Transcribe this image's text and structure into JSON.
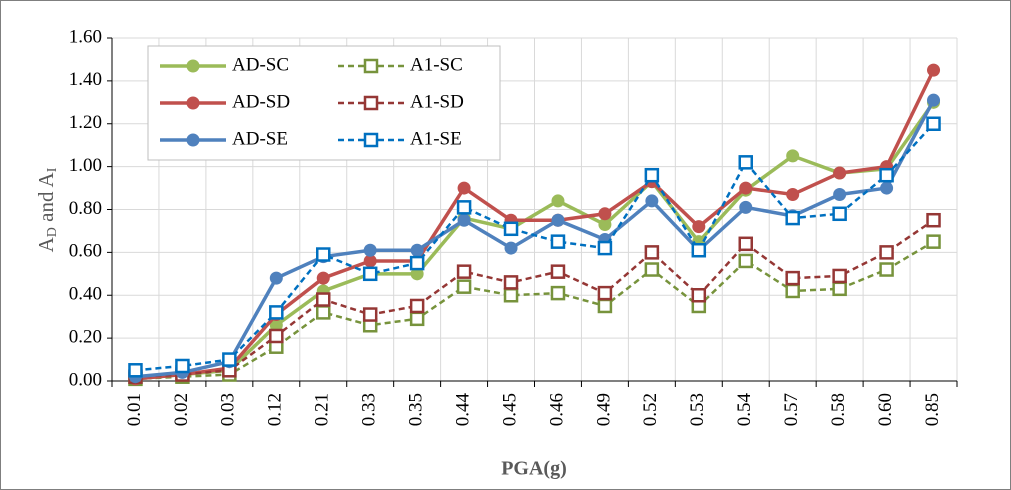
{
  "chart_data": {
    "type": "line",
    "xlabel": "PGA(g)",
    "ylabel": [
      "A",
      "D",
      " and A",
      "I"
    ],
    "categories": [
      "0.01",
      "0.02",
      "0.03",
      "0.12",
      "0.21",
      "0.33",
      "0.35",
      "0.44",
      "0.45",
      "0.46",
      "0.49",
      "0.52",
      "0.53",
      "0.54",
      "0.57",
      "0.58",
      "0.60",
      "0.85"
    ],
    "ylim": [
      0,
      1.6
    ],
    "yticks": [
      {
        "value": 0,
        "label": "0.00"
      },
      {
        "value": 0.2,
        "label": "0.20"
      },
      {
        "value": 0.4,
        "label": "0.40"
      },
      {
        "value": 0.6,
        "label": "0.60"
      },
      {
        "value": 0.8,
        "label": "0.80"
      },
      {
        "value": 1,
        "label": "1.00"
      },
      {
        "value": 1.2,
        "label": "1.20"
      },
      {
        "value": 1.4,
        "label": "1.40"
      },
      {
        "value": 1.6,
        "label": "1.60"
      }
    ],
    "grid": true,
    "legend": "upper left",
    "series": [
      {
        "name": "AD-SC",
        "color": "#9bbb59",
        "marker": "circle",
        "dashed": false,
        "values": [
          0.01,
          0.03,
          0.05,
          0.26,
          0.42,
          0.5,
          0.5,
          0.76,
          0.71,
          0.84,
          0.73,
          0.93,
          0.65,
          0.89,
          1.05,
          0.97,
          0.99,
          1.3
        ]
      },
      {
        "name": "A1-SC",
        "color": "#77933c",
        "marker": "square",
        "dashed": true,
        "values": [
          0.01,
          0.02,
          0.03,
          0.16,
          0.32,
          0.26,
          0.29,
          0.44,
          0.4,
          0.41,
          0.35,
          0.52,
          0.35,
          0.56,
          0.42,
          0.43,
          0.52,
          0.65
        ]
      },
      {
        "name": "AD-SD",
        "color": "#c0504d",
        "marker": "circle",
        "dashed": false,
        "values": [
          0.01,
          0.03,
          0.06,
          0.31,
          0.48,
          0.56,
          0.56,
          0.9,
          0.75,
          0.75,
          0.78,
          0.93,
          0.72,
          0.9,
          0.87,
          0.97,
          1.0,
          1.45
        ]
      },
      {
        "name": "A1-SD",
        "color": "#953735",
        "marker": "square",
        "dashed": true,
        "values": [
          0.02,
          0.03,
          0.05,
          0.21,
          0.38,
          0.31,
          0.35,
          0.51,
          0.46,
          0.51,
          0.41,
          0.6,
          0.4,
          0.64,
          0.48,
          0.49,
          0.6,
          0.75
        ]
      },
      {
        "name": "AD-SE",
        "color": "#4f81bd",
        "marker": "circle",
        "dashed": false,
        "values": [
          0.02,
          0.04,
          0.09,
          0.48,
          0.58,
          0.61,
          0.61,
          0.75,
          0.62,
          0.75,
          0.66,
          0.84,
          0.61,
          0.81,
          0.77,
          0.87,
          0.9,
          1.31
        ]
      },
      {
        "name": "A1-SE",
        "color": "#0070c0",
        "marker": "square",
        "dashed": true,
        "values": [
          0.05,
          0.07,
          0.1,
          0.32,
          0.59,
          0.5,
          0.55,
          0.81,
          0.71,
          0.65,
          0.62,
          0.96,
          0.61,
          1.02,
          0.76,
          0.78,
          0.96,
          1.2
        ]
      }
    ]
  }
}
